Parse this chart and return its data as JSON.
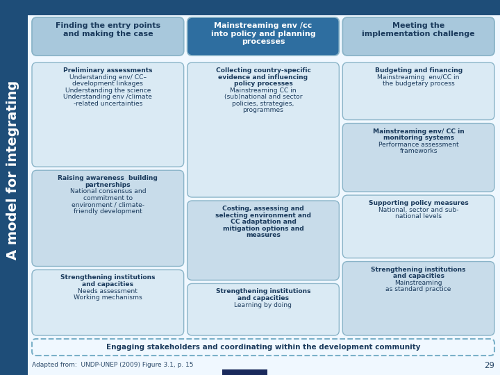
{
  "bg_color": "#f0f8ff",
  "header_bg": "#1e4d78",
  "left_bar_bg": "#1e4d78",
  "col1_header": "Finding the entry points\nand making the case",
  "col2_header": "Mainstreaming env /cc\ninto policy and planning\nprocesses",
  "col3_header": "Meeting the\nimplementation challenge",
  "left_label": "A model for integrating",
  "col1_cells": [
    [
      [
        "bold",
        "Preliminary assessments"
      ],
      [
        "normal",
        "Understanding env/ CC–"
      ],
      [
        "normal",
        "development linkages"
      ],
      [
        "normal",
        "Understanding the science"
      ],
      [
        "normal",
        "Understanding env /climate"
      ],
      [
        "normal",
        "-related uncertainties"
      ]
    ],
    [
      [
        "bold",
        "Raising awareness  building"
      ],
      [
        "bold",
        "partnerships"
      ],
      [
        "normal",
        "National consensus and"
      ],
      [
        "normal",
        "commitment to"
      ],
      [
        "normal",
        "environment / climate-"
      ],
      [
        "normal",
        "friendly development"
      ]
    ],
    [
      [
        "bold",
        "Strengthening institutions"
      ],
      [
        "bold",
        "and capacities"
      ],
      [
        "normal",
        "Needs assessment"
      ],
      [
        "normal",
        "Working mechanisms"
      ]
    ]
  ],
  "col2_cells": [
    [
      [
        "bold",
        "Collecting country-specific"
      ],
      [
        "bold",
        "evidence and influencing"
      ],
      [
        "bold",
        "policy processes"
      ],
      [
        "normal",
        "Mainstreaming CC in"
      ],
      [
        "normal",
        "(sub)national and sector"
      ],
      [
        "normal",
        "policies, strategies,"
      ],
      [
        "normal",
        "programmes"
      ]
    ],
    [
      [
        "bold",
        "Costing, assessing and"
      ],
      [
        "bold",
        "selecting environment and"
      ],
      [
        "bold",
        "CC adaptation and"
      ],
      [
        "bold",
        "mitigation options and"
      ],
      [
        "bold",
        "measures"
      ]
    ],
    [
      [
        "bold",
        "Strengthening institutions"
      ],
      [
        "bold",
        "and capacities"
      ],
      [
        "normal",
        "Learning by doing"
      ]
    ]
  ],
  "col3_cells": [
    [
      [
        "bold",
        "Budgeting and financing"
      ],
      [
        "normal",
        "Mainstreaming  env/CC in"
      ],
      [
        "normal",
        "the budgetary process"
      ]
    ],
    [
      [
        "bold",
        "Mainstreaming env/ CC in"
      ],
      [
        "bold",
        "monitoring systems"
      ],
      [
        "normal",
        "Performance assessment"
      ],
      [
        "normal",
        "frameworks"
      ]
    ],
    [
      [
        "bold",
        "Supporting policy measures"
      ],
      [
        "normal",
        "National, sector and sub-"
      ],
      [
        "normal",
        "national levels"
      ]
    ],
    [
      [
        "bold",
        "Strengthening institutions"
      ],
      [
        "bold",
        "and capacities"
      ],
      [
        "normal",
        "Mainstreaming"
      ],
      [
        "normal",
        "as standard practice"
      ]
    ]
  ],
  "bottom_box": "Engaging stakeholders and coordinating within the development community",
  "footnote": "Adapted from:  UNDP-UNEP (2009) Figure 3.1, p. 15",
  "page_num": "29",
  "cell_bg_col1_1": "#daeaf4",
  "cell_bg_col1_2": "#c8dcea",
  "cell_bg_col1_3": "#daeaf4",
  "cell_bg_col2_1": "#daeaf4",
  "cell_bg_col2_2": "#c8dcea",
  "cell_bg_col2_3": "#daeaf4",
  "cell_bg_col3_1": "#daeaf4",
  "cell_bg_col3_2": "#c8dcea",
  "cell_bg_col3_3": "#daeaf4",
  "cell_bg_col3_4": "#c8dcea",
  "header_col1_bg": "#a8c8dc",
  "header_col2_bg": "#2e6ea0",
  "header_col3_bg": "#a8c8dc",
  "cell_border_col1": "#8ab4c8",
  "cell_border_col2": "#8ab4c8",
  "cell_border_col3": "#8ab4c8",
  "header_col1_tc": "#1a3a5c",
  "header_col2_tc": "#ffffff",
  "header_col3_tc": "#1a3a5c",
  "cell_bold_color": "#1a3a5c",
  "cell_normal_color": "#1a3a5c",
  "left_text_color": "#ffffff",
  "bottom_border_color": "#7ab0c8",
  "bottom_text_color": "#1a3a5c",
  "footnote_color": "#2c4a6a",
  "page_num_color": "#2c4a6a",
  "small_rect_color": "#1a2a5c"
}
